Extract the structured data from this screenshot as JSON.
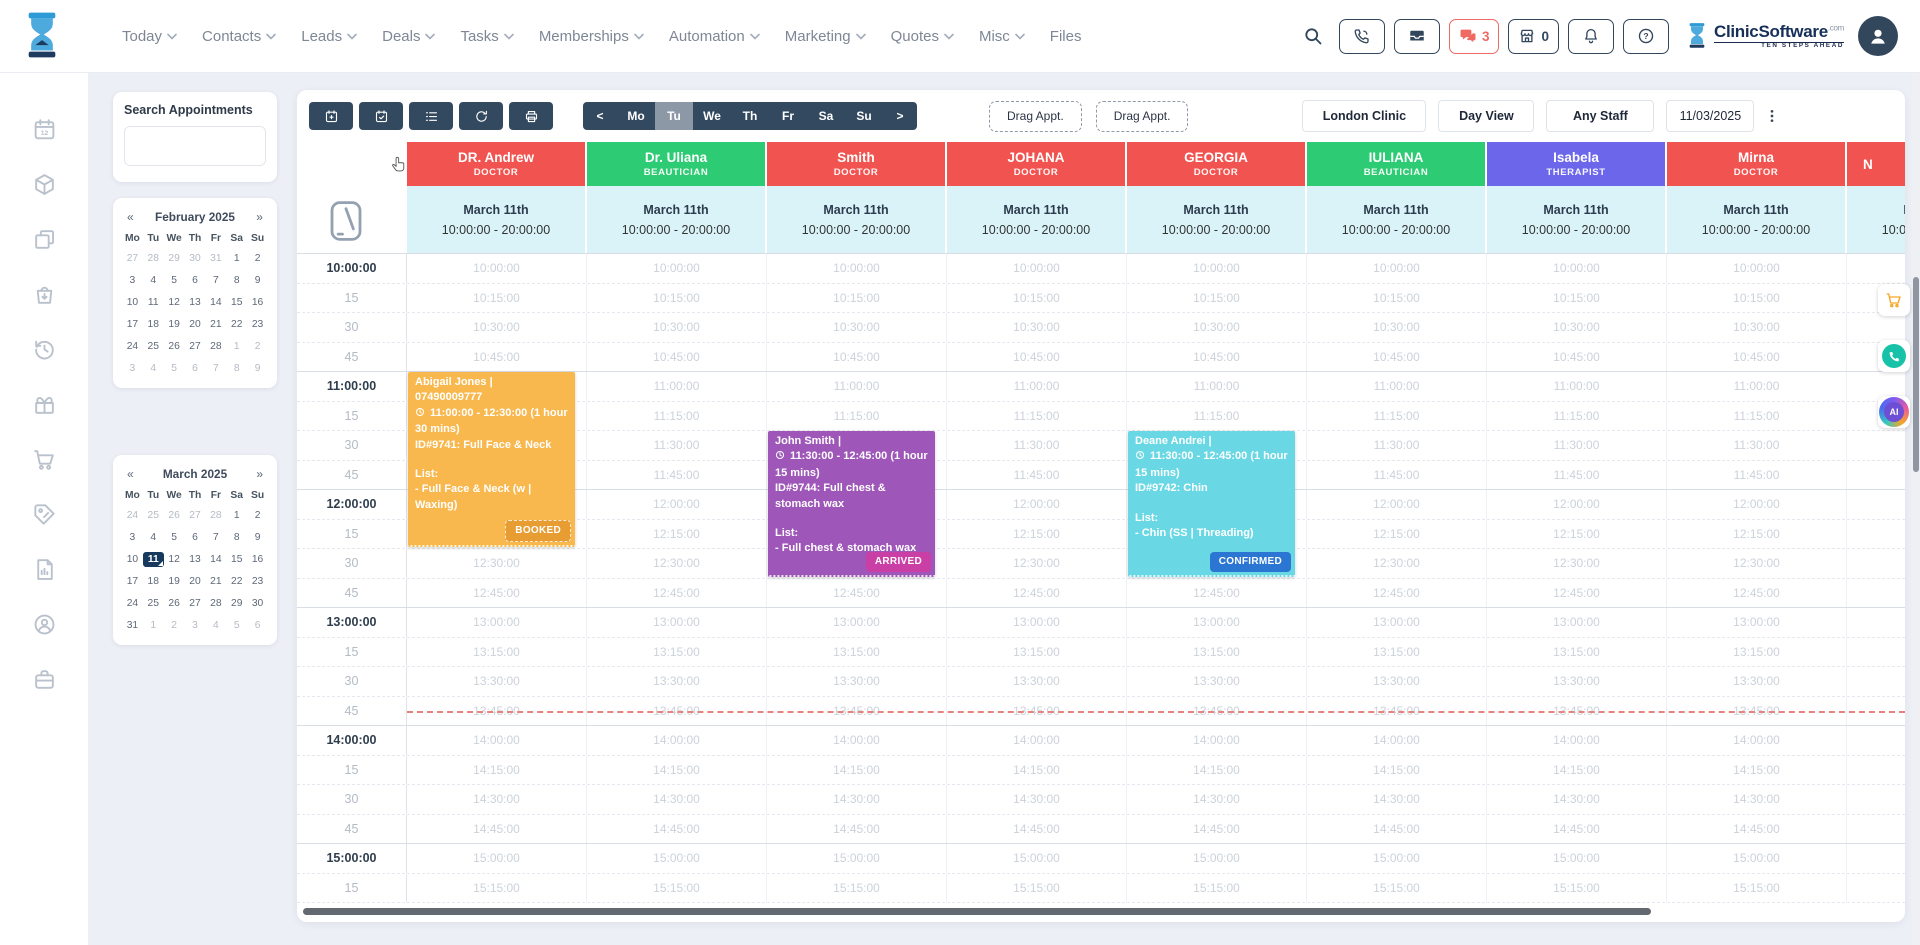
{
  "nav": {
    "items": [
      {
        "label": "Today",
        "chevron": true
      },
      {
        "label": "Contacts",
        "chevron": true
      },
      {
        "label": "Leads",
        "chevron": true
      },
      {
        "label": "Deals",
        "chevron": true
      },
      {
        "label": "Tasks",
        "chevron": true
      },
      {
        "label": "Memberships",
        "chevron": true
      },
      {
        "label": "Automation",
        "chevron": true
      },
      {
        "label": "Marketing",
        "chevron": true
      },
      {
        "label": "Quotes",
        "chevron": true
      },
      {
        "label": "Misc",
        "chevron": true
      },
      {
        "label": "Files",
        "chevron": false
      }
    ]
  },
  "topbar": {
    "buttons": [
      {
        "name": "phone",
        "icon": "phone"
      },
      {
        "name": "inbox",
        "icon": "inbox"
      },
      {
        "name": "chat",
        "icon": "chat",
        "badge": "3",
        "alert": true
      },
      {
        "name": "store",
        "icon": "store",
        "badge": "0"
      },
      {
        "name": "notifications",
        "icon": "bell"
      },
      {
        "name": "help",
        "icon": "help"
      }
    ],
    "brand": "ClinicSoftware",
    "brand_tld": ".com",
    "brand_tagline": "TEN STEPS AHEAD"
  },
  "sidebar": {
    "icons": [
      "calendar",
      "package",
      "pages",
      "bag",
      "history",
      "gift",
      "cart",
      "price-tag",
      "report",
      "account",
      "briefcase"
    ]
  },
  "search_panel": {
    "title": "Search Appointments",
    "value": ""
  },
  "mini_calendars": [
    {
      "title": "February 2025",
      "prev": "«",
      "next": "»",
      "weekdays": [
        "Mo",
        "Tu",
        "We",
        "Th",
        "Fr",
        "Sa",
        "Su"
      ],
      "rows": [
        [
          "27",
          "28",
          "29",
          "30",
          "31",
          "1",
          "2"
        ],
        [
          "3",
          "4",
          "5",
          "6",
          "7",
          "8",
          "9"
        ],
        [
          "10",
          "11",
          "12",
          "13",
          "14",
          "15",
          "16"
        ],
        [
          "17",
          "18",
          "19",
          "20",
          "21",
          "22",
          "23"
        ],
        [
          "24",
          "25",
          "26",
          "27",
          "28",
          "1",
          "2"
        ],
        [
          "3",
          "4",
          "5",
          "6",
          "7",
          "8",
          "9"
        ]
      ],
      "muted": [
        [
          0,
          0
        ],
        [
          0,
          1
        ],
        [
          0,
          2
        ],
        [
          0,
          3
        ],
        [
          0,
          4
        ],
        [
          4,
          5
        ],
        [
          4,
          6
        ],
        [
          5,
          0
        ],
        [
          5,
          1
        ],
        [
          5,
          2
        ],
        [
          5,
          3
        ],
        [
          5,
          4
        ],
        [
          5,
          5
        ],
        [
          5,
          6
        ]
      ],
      "selected": null
    },
    {
      "title": "March 2025",
      "prev": "«",
      "next": "»",
      "weekdays": [
        "Mo",
        "Tu",
        "We",
        "Th",
        "Fr",
        "Sa",
        "Su"
      ],
      "rows": [
        [
          "24",
          "25",
          "26",
          "27",
          "28",
          "1",
          "2"
        ],
        [
          "3",
          "4",
          "5",
          "6",
          "7",
          "8",
          "9"
        ],
        [
          "10",
          "11",
          "12",
          "13",
          "14",
          "15",
          "16"
        ],
        [
          "17",
          "18",
          "19",
          "20",
          "21",
          "22",
          "23"
        ],
        [
          "24",
          "25",
          "26",
          "27",
          "28",
          "29",
          "30"
        ],
        [
          "31",
          "1",
          "2",
          "3",
          "4",
          "5",
          "6"
        ]
      ],
      "muted": [
        [
          0,
          0
        ],
        [
          0,
          1
        ],
        [
          0,
          2
        ],
        [
          0,
          3
        ],
        [
          0,
          4
        ],
        [
          5,
          1
        ],
        [
          5,
          2
        ],
        [
          5,
          3
        ],
        [
          5,
          4
        ],
        [
          5,
          5
        ],
        [
          5,
          6
        ]
      ],
      "selected": [
        2,
        1
      ]
    }
  ],
  "toolbar": {
    "icon_buttons": [
      {
        "name": "new-appointment",
        "icon": "cal-plus"
      },
      {
        "name": "appointments-check",
        "icon": "cal-check"
      },
      {
        "name": "waiting-list",
        "icon": "list"
      },
      {
        "name": "refresh",
        "icon": "refresh"
      },
      {
        "name": "print",
        "icon": "print"
      }
    ],
    "prev": "<",
    "next": ">",
    "weekdays": [
      "Mo",
      "Tu",
      "We",
      "Th",
      "Fr",
      "Sa",
      "Su"
    ],
    "active_weekday": "Tu",
    "drag_buttons": [
      "Drag Appt.",
      "Drag Appt."
    ],
    "clinic": "London Clinic",
    "view": "Day View",
    "staff": "Any Staff",
    "date": "11/03/2025"
  },
  "schedule": {
    "column_date": "March 11th",
    "column_hours": "10:00:00 - 20:00:00",
    "staff": [
      {
        "name": "DR. Andrew",
        "role": "DOCTOR",
        "color": "#f15450"
      },
      {
        "name": "Dr. Uliana",
        "role": "BEAUTICIAN",
        "color": "#2dcb73"
      },
      {
        "name": "Smith",
        "role": "DOCTOR",
        "color": "#f15450"
      },
      {
        "name": "JOHANA",
        "role": "DOCTOR",
        "color": "#f15450"
      },
      {
        "name": "GEORGIA",
        "role": "DOCTOR",
        "color": "#f15450"
      },
      {
        "name": "IULIANA",
        "role": "BEAUTICIAN",
        "color": "#2dcb73"
      },
      {
        "name": "Isabela",
        "role": "THERAPIST",
        "color": "#6c66ea"
      },
      {
        "name": "Mirna",
        "role": "DOCTOR",
        "color": "#f15450"
      },
      {
        "name": "N",
        "role": "",
        "color": "#f15450",
        "partial": true
      }
    ],
    "time_labels": [
      "10:00:00",
      "15",
      "30",
      "45",
      "11:00:00",
      "15",
      "30",
      "45",
      "12:00:00",
      "15",
      "30",
      "45",
      "13:00:00",
      "15",
      "30",
      "45",
      "14:00:00",
      "15",
      "30",
      "45",
      "15:00:00",
      "15"
    ],
    "ghost_times": [
      "10:00:00",
      "10:15:00",
      "10:30:00",
      "10:45:00",
      "11:00:00",
      "11:15:00",
      "11:30:00",
      "11:45:00",
      "12:00:00",
      "12:15:00",
      "12:30:00",
      "12:45:00",
      "13:00:00",
      "13:15:00",
      "13:30:00",
      "13:45:00",
      "14:00:00",
      "14:15:00",
      "14:30:00",
      "14:45:00",
      "15:00:00",
      "15:15:00"
    ],
    "current_time_index": 15,
    "appointments": [
      {
        "staff_index": 0,
        "start_index": 4,
        "span": 6,
        "color": "#f8b84e",
        "name_lines": [
          "Abigail Jones |",
          "07490009777"
        ],
        "time_text": "11:00:00 - 12:30:00 (1 hour 30 mins)",
        "id_text": "ID#9741: Full Face & Neck",
        "list_label": "List:",
        "list_items": [
          "- Full Face & Neck (w | Waxing)"
        ],
        "status": "BOOKED",
        "status_color": "#e89d33",
        "status_style": "dashed"
      },
      {
        "staff_index": 2,
        "start_index": 6,
        "span": 5,
        "color": "#9e57b8",
        "name_lines": [
          "John Smith |"
        ],
        "time_text": "11:30:00 - 12:45:00 (1 hour 15 mins)",
        "id_text": "ID#9744: Full chest & stomach wax",
        "list_label": "List:",
        "list_items": [
          "- Full chest & stomach wax"
        ],
        "status": "ARRIVED",
        "status_color": "#ca3fa5",
        "status_style": "solid"
      },
      {
        "staff_index": 4,
        "start_index": 6,
        "span": 5,
        "color": "#69d8e4",
        "name_lines": [
          "Deane Andrei |"
        ],
        "time_text": "11:30:00 - 12:45:00 (1 hour 15 mins)",
        "id_text": "ID#9742: Chin",
        "list_label": "List:",
        "list_items": [
          "- Chin (SS | Threading)"
        ],
        "status": "CONFIRMED",
        "status_color": "#2b76d2",
        "status_style": "solid"
      }
    ]
  },
  "floating": {
    "ai_label": "AI"
  }
}
